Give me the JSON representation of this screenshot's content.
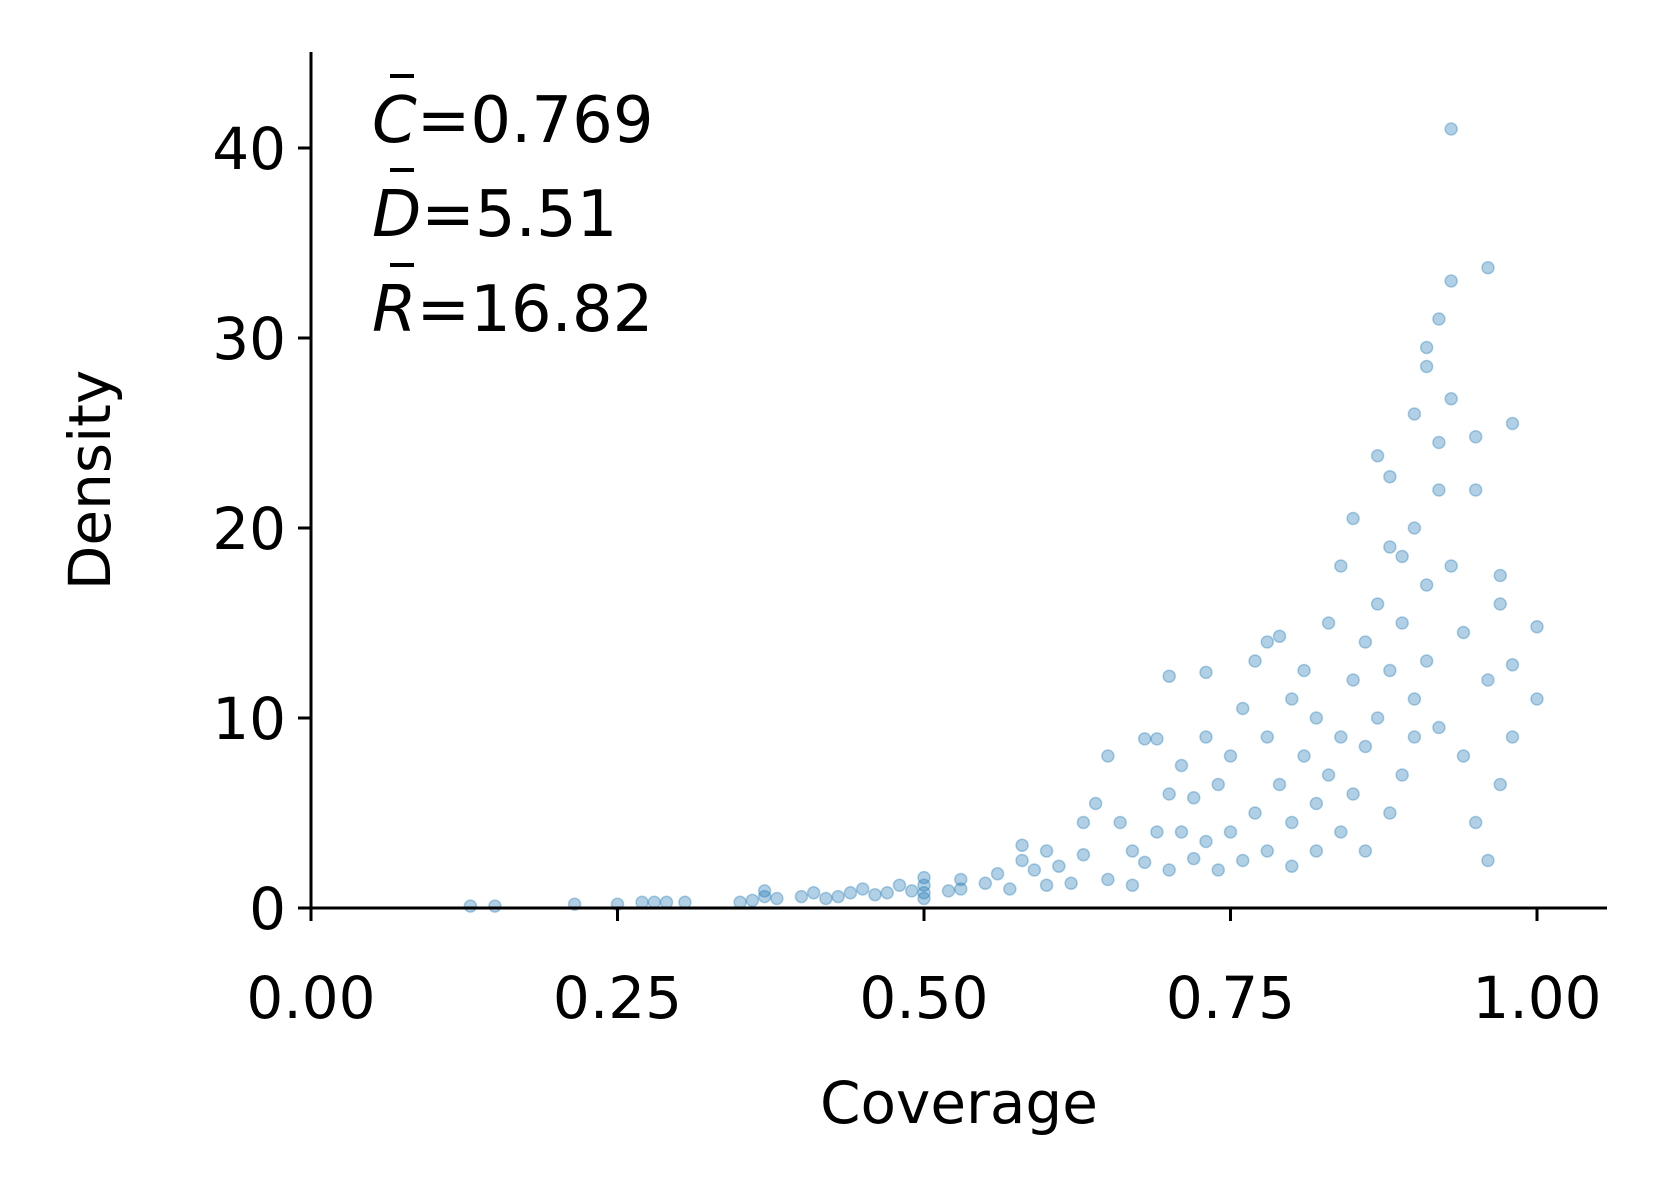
{
  "chart_data": {
    "type": "scatter",
    "title": "",
    "xlabel": "Coverage",
    "ylabel": "Density",
    "xlim": [
      0,
      1.05
    ],
    "ylim": [
      0,
      45
    ],
    "xticks": [
      0,
      0.25,
      0.5,
      0.75,
      1.0
    ],
    "xtick_labels": [
      "0.00",
      "0.25",
      "0.50",
      "0.75",
      "1.00"
    ],
    "yticks": [
      0,
      10,
      20,
      30,
      40
    ],
    "ytick_labels": [
      "0",
      "10",
      "20",
      "30",
      "40"
    ],
    "grid": false,
    "legend": "none",
    "annotations": [
      {
        "symbol": "C",
        "text": "=0.769"
      },
      {
        "symbol": "D",
        "text": "=5.51"
      },
      {
        "symbol": "R",
        "text": "=16.82"
      }
    ],
    "series": [
      {
        "color": "#1f77b4",
        "alpha": 0.35,
        "points": [
          [
            0.13,
            0.1
          ],
          [
            0.15,
            0.1
          ],
          [
            0.215,
            0.2
          ],
          [
            0.25,
            0.2
          ],
          [
            0.27,
            0.3
          ],
          [
            0.28,
            0.3
          ],
          [
            0.29,
            0.3
          ],
          [
            0.305,
            0.3
          ],
          [
            0.35,
            0.3
          ],
          [
            0.36,
            0.4
          ],
          [
            0.37,
            0.6
          ],
          [
            0.37,
            0.9
          ],
          [
            0.38,
            0.5
          ],
          [
            0.4,
            0.6
          ],
          [
            0.41,
            0.8
          ],
          [
            0.42,
            0.5
          ],
          [
            0.43,
            0.6
          ],
          [
            0.44,
            0.8
          ],
          [
            0.45,
            1.0
          ],
          [
            0.46,
            0.7
          ],
          [
            0.47,
            0.8
          ],
          [
            0.48,
            1.2
          ],
          [
            0.49,
            0.9
          ],
          [
            0.5,
            0.5
          ],
          [
            0.5,
            0.8
          ],
          [
            0.5,
            1.2
          ],
          [
            0.5,
            1.6
          ],
          [
            0.52,
            0.9
          ],
          [
            0.53,
            1.0
          ],
          [
            0.53,
            1.5
          ],
          [
            0.55,
            1.3
          ],
          [
            0.56,
            1.8
          ],
          [
            0.57,
            1.0
          ],
          [
            0.58,
            2.5
          ],
          [
            0.58,
            3.3
          ],
          [
            0.59,
            2.0
          ],
          [
            0.6,
            1.2
          ],
          [
            0.6,
            3.0
          ],
          [
            0.61,
            2.2
          ],
          [
            0.62,
            1.3
          ],
          [
            0.63,
            2.8
          ],
          [
            0.63,
            4.5
          ],
          [
            0.64,
            5.5
          ],
          [
            0.65,
            1.5
          ],
          [
            0.65,
            8.0
          ],
          [
            0.66,
            4.5
          ],
          [
            0.67,
            3.0
          ],
          [
            0.67,
            1.2
          ],
          [
            0.68,
            8.9
          ],
          [
            0.68,
            2.4
          ],
          [
            0.69,
            8.9
          ],
          [
            0.69,
            4.0
          ],
          [
            0.7,
            6.0
          ],
          [
            0.7,
            2.0
          ],
          [
            0.7,
            12.2
          ],
          [
            0.71,
            7.5
          ],
          [
            0.71,
            4.0
          ],
          [
            0.72,
            5.8
          ],
          [
            0.72,
            2.6
          ],
          [
            0.73,
            9.0
          ],
          [
            0.73,
            3.5
          ],
          [
            0.73,
            12.4
          ],
          [
            0.74,
            6.5
          ],
          [
            0.74,
            2.0
          ],
          [
            0.75,
            4.0
          ],
          [
            0.75,
            8.0
          ],
          [
            0.76,
            10.5
          ],
          [
            0.76,
            2.5
          ],
          [
            0.77,
            5.0
          ],
          [
            0.77,
            13.0
          ],
          [
            0.78,
            9.0
          ],
          [
            0.78,
            3.0
          ],
          [
            0.78,
            14.0
          ],
          [
            0.79,
            6.5
          ],
          [
            0.79,
            14.3
          ],
          [
            0.8,
            4.5
          ],
          [
            0.8,
            11.0
          ],
          [
            0.8,
            2.2
          ],
          [
            0.81,
            8.0
          ],
          [
            0.81,
            12.5
          ],
          [
            0.82,
            5.5
          ],
          [
            0.82,
            3.0
          ],
          [
            0.82,
            10.0
          ],
          [
            0.83,
            7.0
          ],
          [
            0.83,
            15.0
          ],
          [
            0.84,
            9.0
          ],
          [
            0.84,
            4.0
          ],
          [
            0.84,
            18.0
          ],
          [
            0.85,
            6.0
          ],
          [
            0.85,
            12.0
          ],
          [
            0.85,
            20.5
          ],
          [
            0.86,
            8.5
          ],
          [
            0.86,
            14.0
          ],
          [
            0.86,
            3.0
          ],
          [
            0.87,
            10.0
          ],
          [
            0.87,
            16.0
          ],
          [
            0.87,
            23.8
          ],
          [
            0.88,
            5.0
          ],
          [
            0.88,
            12.5
          ],
          [
            0.88,
            19.0
          ],
          [
            0.88,
            22.7
          ],
          [
            0.89,
            7.0
          ],
          [
            0.89,
            15.0
          ],
          [
            0.89,
            18.5
          ],
          [
            0.9,
            9.0
          ],
          [
            0.9,
            11.0
          ],
          [
            0.9,
            20.0
          ],
          [
            0.9,
            26.0
          ],
          [
            0.91,
            28.5
          ],
          [
            0.91,
            29.5
          ],
          [
            0.91,
            13.0
          ],
          [
            0.91,
            17.0
          ],
          [
            0.92,
            31.0
          ],
          [
            0.92,
            24.5
          ],
          [
            0.92,
            22.0
          ],
          [
            0.92,
            9.5
          ],
          [
            0.93,
            41.0
          ],
          [
            0.93,
            33.0
          ],
          [
            0.93,
            26.8
          ],
          [
            0.93,
            18.0
          ],
          [
            0.94,
            14.5
          ],
          [
            0.94,
            8.0
          ],
          [
            0.95,
            22.0
          ],
          [
            0.95,
            24.8
          ],
          [
            0.95,
            4.5
          ],
          [
            0.96,
            33.7
          ],
          [
            0.96,
            12.0
          ],
          [
            0.96,
            2.5
          ],
          [
            0.97,
            17.5
          ],
          [
            0.97,
            16.0
          ],
          [
            0.97,
            6.5
          ],
          [
            0.98,
            25.5
          ],
          [
            0.98,
            12.8
          ],
          [
            0.98,
            9.0
          ],
          [
            1.0,
            14.8
          ],
          [
            1.0,
            11.0
          ]
        ]
      }
    ]
  }
}
